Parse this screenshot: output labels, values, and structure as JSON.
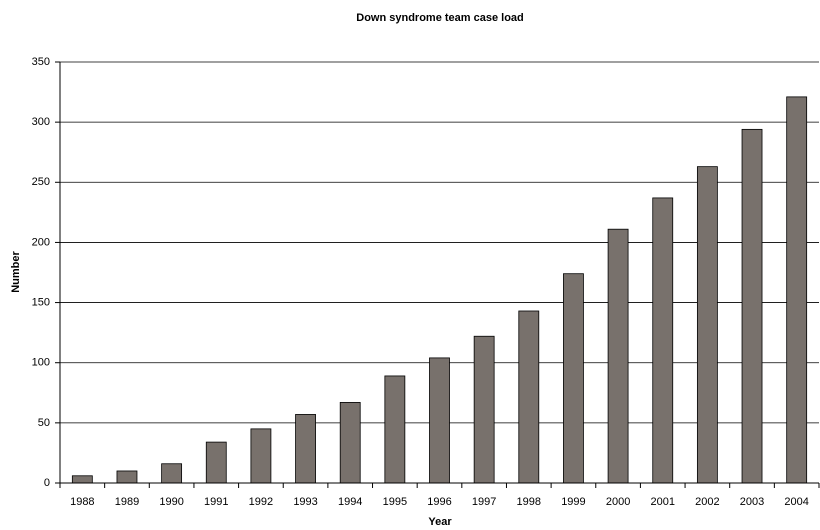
{
  "chart_data": {
    "type": "bar",
    "title": "Down syndrome team case load",
    "x_label": "Year",
    "y_label": "Number",
    "categories": [
      "1988",
      "1989",
      "1990",
      "1991",
      "1992",
      "1993",
      "1994",
      "1995",
      "1996",
      "1997",
      "1998",
      "1999",
      "2000",
      "2001",
      "2002",
      "2003",
      "2004"
    ],
    "values": [
      6,
      10,
      16,
      34,
      45,
      57,
      67,
      89,
      104,
      122,
      143,
      174,
      211,
      237,
      263,
      294,
      321
    ],
    "color": "#78716c",
    "ylim": [
      0,
      350
    ],
    "yticks": [
      0,
      50,
      100,
      150,
      200,
      250,
      300,
      350
    ],
    "grid": true
  }
}
